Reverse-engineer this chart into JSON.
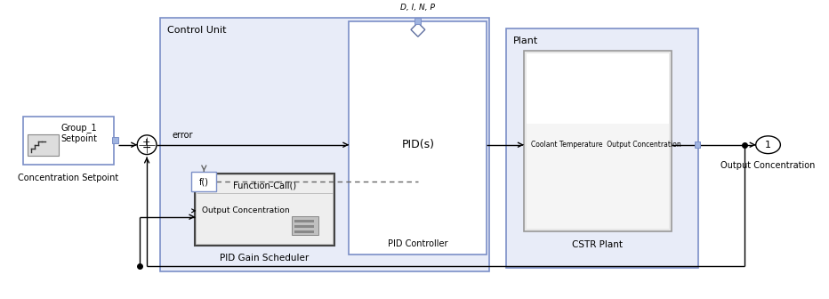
{
  "fig_width": 9.32,
  "fig_height": 3.36,
  "bg_color": "#ffffff",
  "cu_bg": "#e8ecf8",
  "plant_bg": "#e8ecf8",
  "pid_ctrl_bg": "#ffffff",
  "pid_sched_bg": "#e0e0e0",
  "pid_sched_inner_bg": "#f0f0f0",
  "cstr_bg": "#e8e8e8",
  "cstr_inner_bg": "#f8f8f8",
  "sp_block_bg": "#ffffff",
  "border_blue": "#7b8fc7",
  "border_dark": "#444444",
  "border_black": "#000000",
  "line_color": "#000000",
  "dashed_color": "#666666",
  "port_blue": "#a0b4e0",
  "control_unit_label": "Control Unit",
  "plant_label": "Plant",
  "pid_controller_label": "PID Controller",
  "pid_gain_scheduler_label": "PID Gain Scheduler",
  "cstr_plant_label": "CSTR Plant",
  "concentration_setpoint_label": "Concentration Setpoint",
  "pid_s_label": "PID(s)",
  "function_call_label": "Function-Call()",
  "output_concentration_label": "Output Concentration",
  "coolant_temp_label": "Coolant Temperature  Output Concentration",
  "output_conc_label": "Output Concentration",
  "dinp_label": "D, I, N, P",
  "error_label": "error",
  "output_1_label": "1",
  "group1_label": "Group_1",
  "setpoint_label": "Setpoint"
}
